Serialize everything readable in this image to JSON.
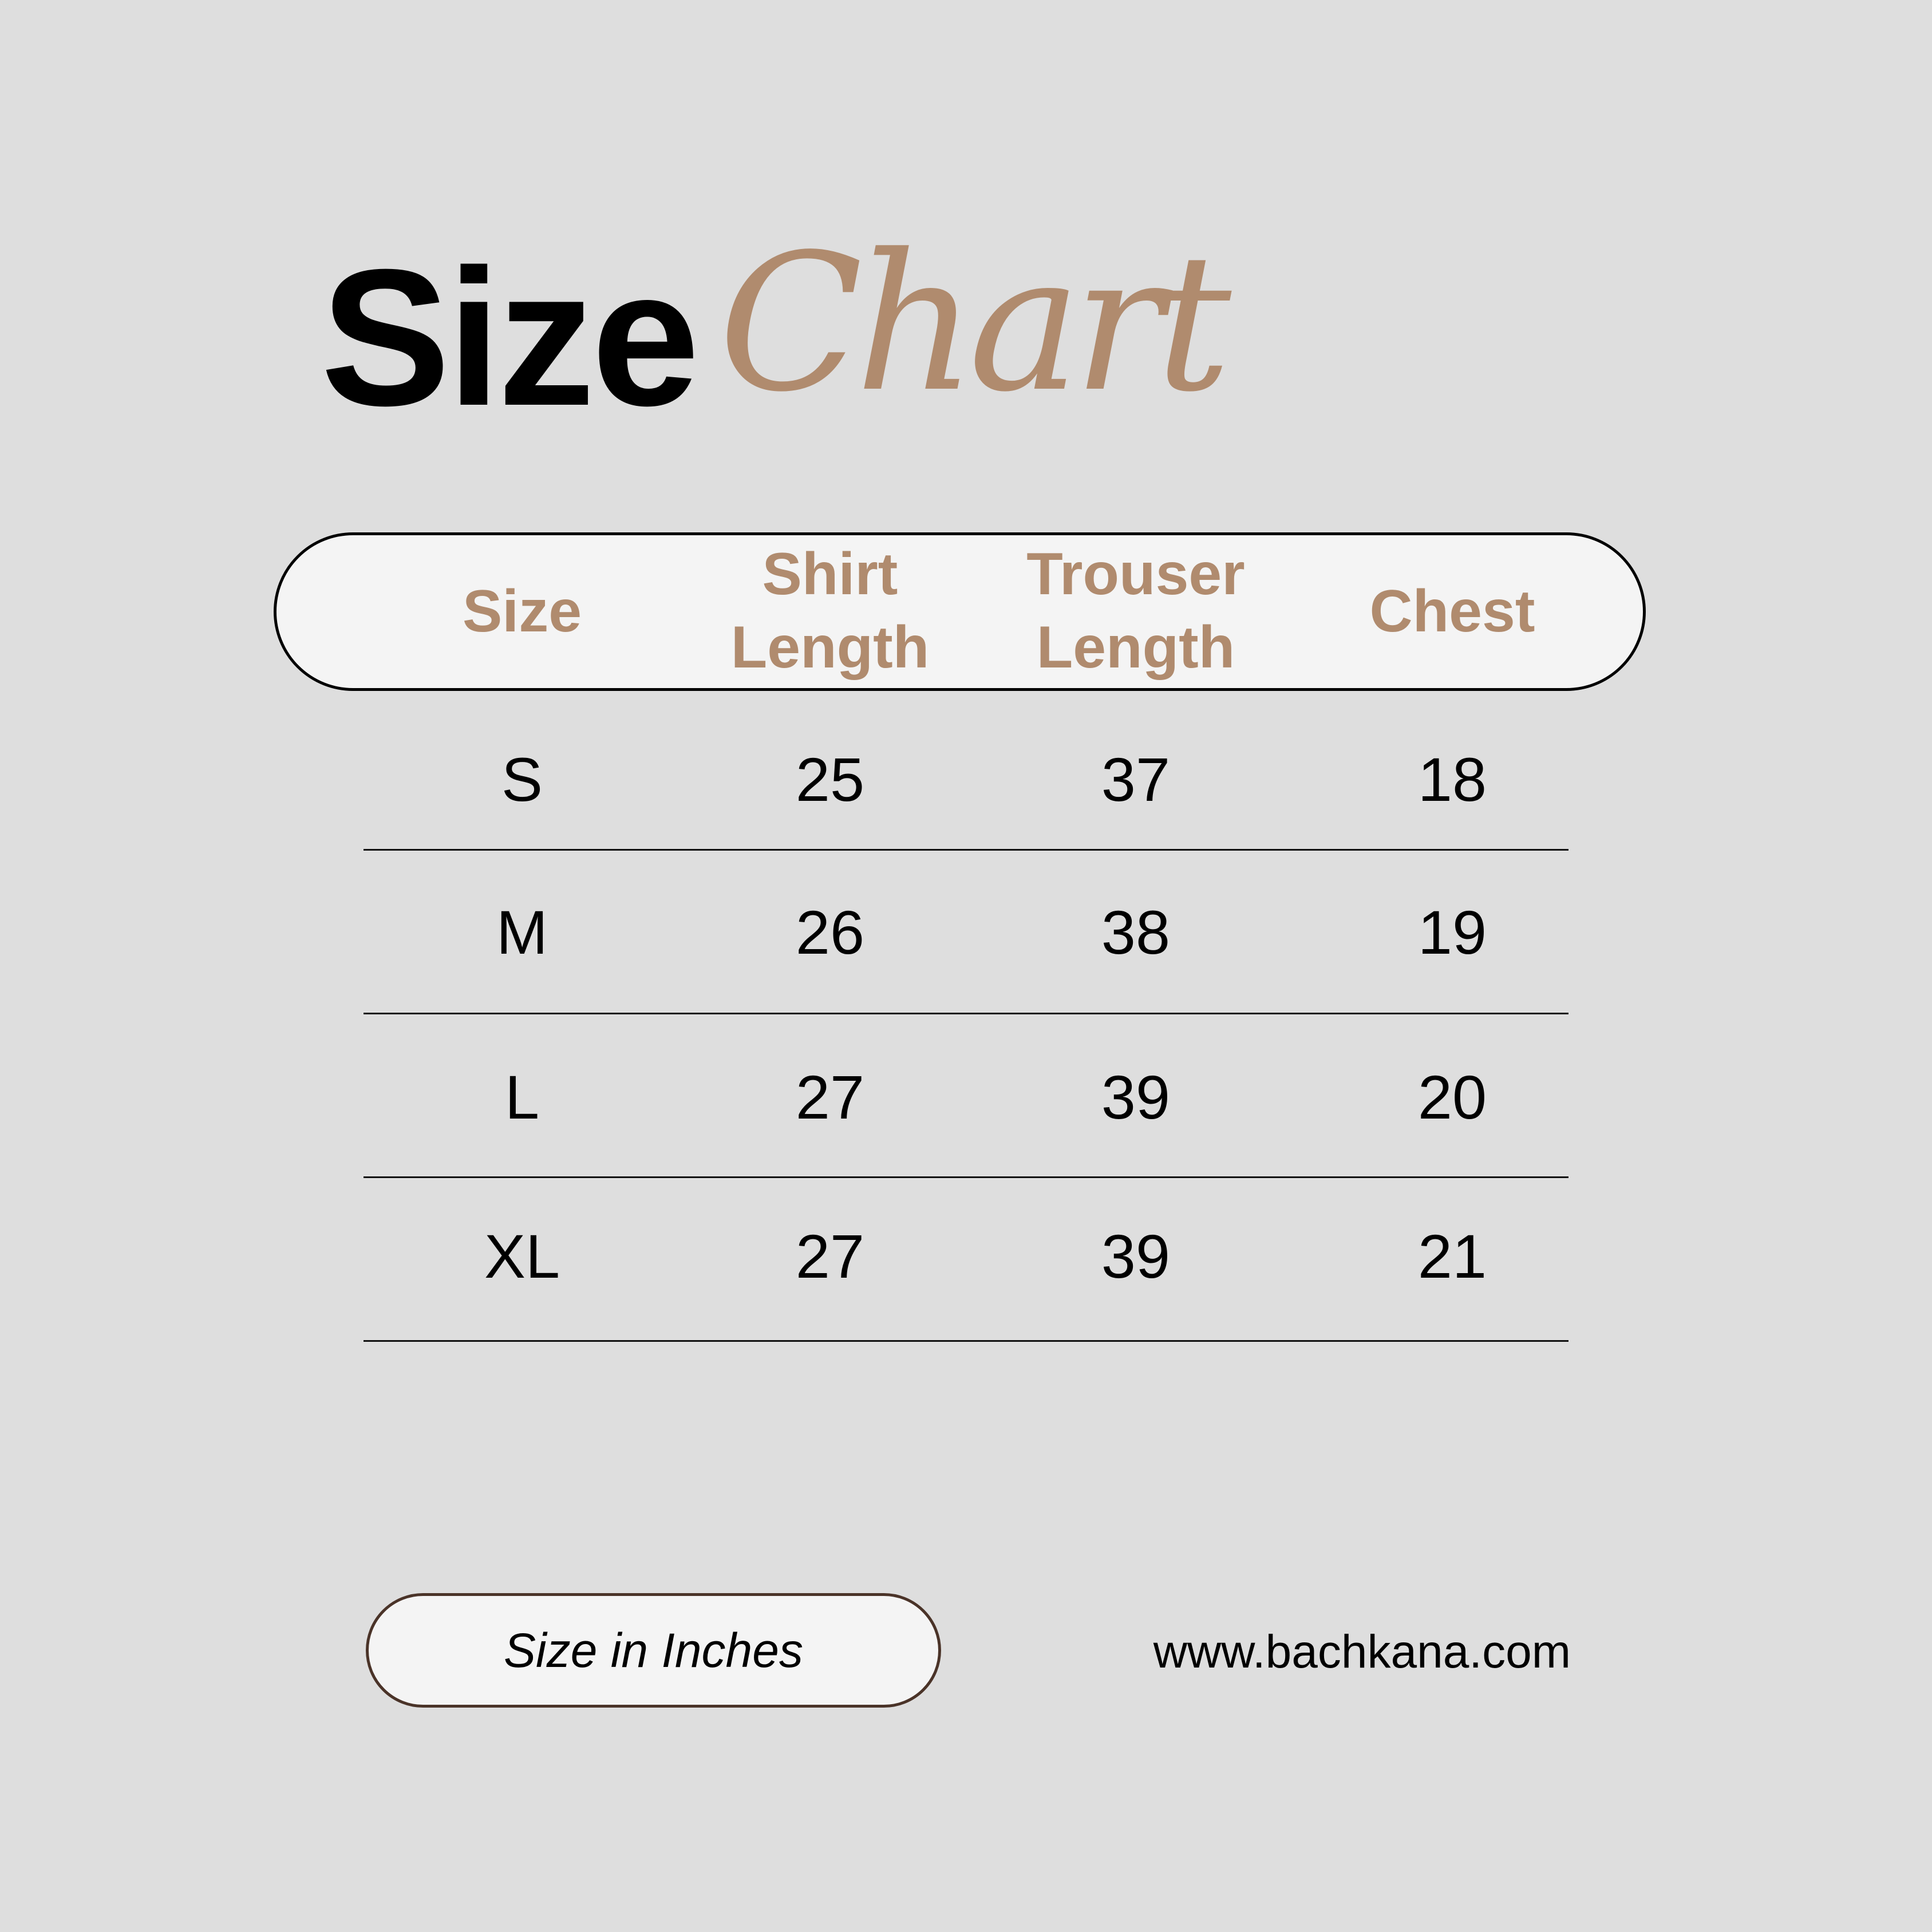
{
  "title": {
    "bold": "Size",
    "script": "Chart",
    "script_color": "#b08b6e"
  },
  "table": {
    "headers": [
      [
        "Size"
      ],
      [
        "Shirt",
        "Length"
      ],
      [
        "Trouser",
        "Length"
      ],
      [
        "Chest"
      ]
    ],
    "rows": [
      [
        "S",
        "25",
        "37",
        "18"
      ],
      [
        "M",
        "26",
        "38",
        "19"
      ],
      [
        "L",
        "27",
        "39",
        "20"
      ],
      [
        "XL",
        "27",
        "39",
        "21"
      ]
    ]
  },
  "footer": {
    "note": "Size in Inches",
    "website": "www.bachkana.com"
  }
}
